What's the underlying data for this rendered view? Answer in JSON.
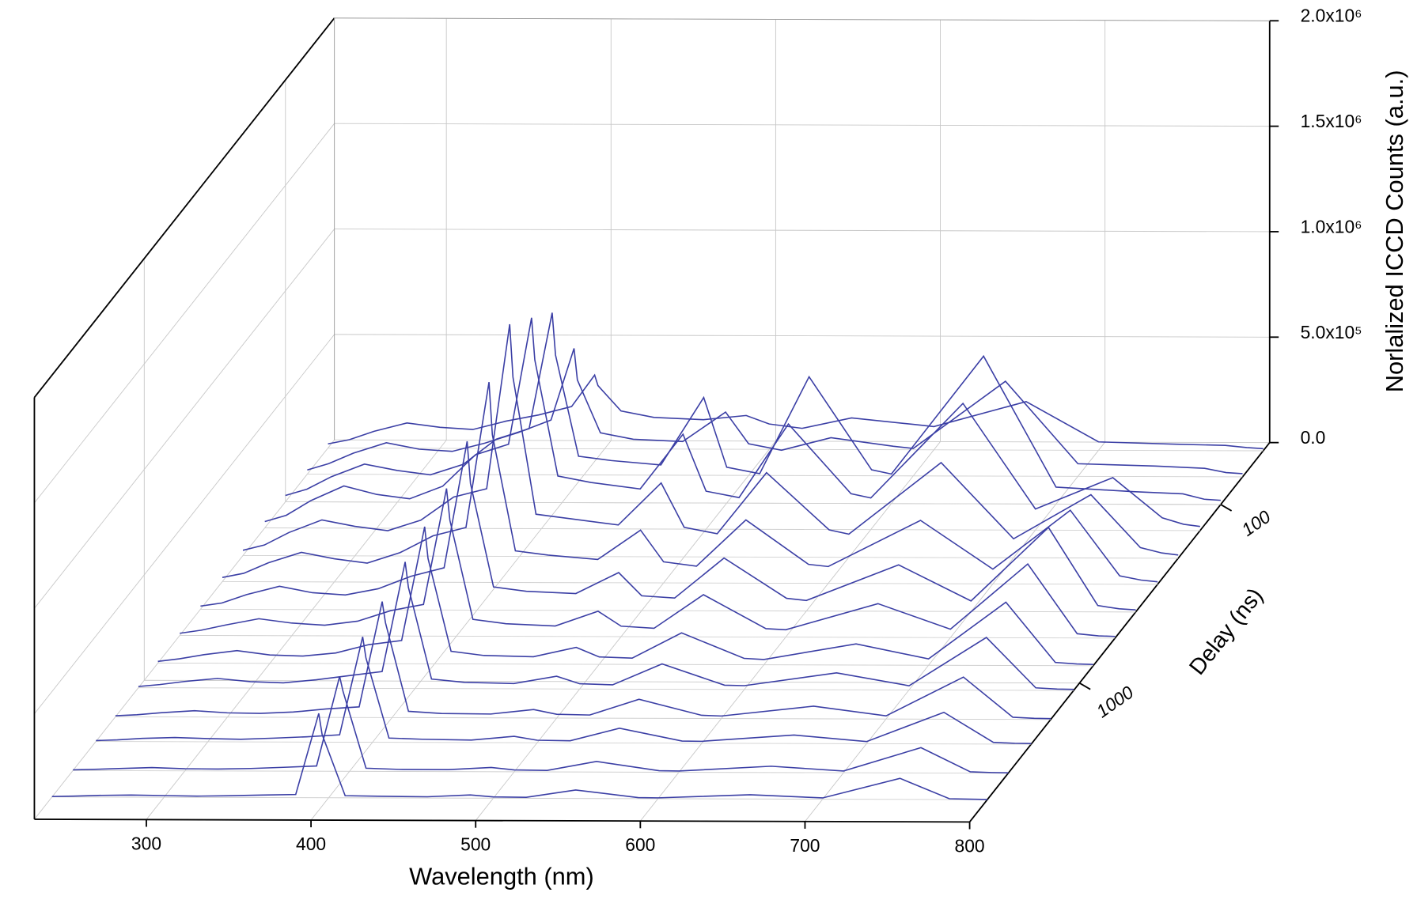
{
  "chart_data": {
    "type": "waterfall",
    "xlabel": "Wavelength (nm)",
    "ylabel": "Norlalized ICCD Counts (a.u.)",
    "zlabel": "Delay (ns)",
    "xlim": [
      232,
      800
    ],
    "xticks": [
      300,
      400,
      500,
      600,
      700,
      800
    ],
    "ylim": [
      0,
      2000000
    ],
    "yticks": [
      {
        "value": 0,
        "label": "0.0"
      },
      {
        "value": 500000,
        "label": "5.0x10⁵"
      },
      {
        "value": 1000000,
        "label": "1.0x10⁶"
      },
      {
        "value": 1500000,
        "label": "1.5x10⁶"
      },
      {
        "value": 2000000,
        "label": "2.0x10⁶"
      }
    ],
    "zlim": [
      45,
      6000
    ],
    "zticks": [
      100,
      1000
    ],
    "zscale": "log",
    "grid": true,
    "color": "#3b3fa5",
    "x": [
      232,
      245,
      260,
      280,
      300,
      320,
      340,
      360,
      380,
      394,
      396,
      410,
      430,
      460,
      486,
      500,
      520,
      550,
      588,
      600,
      656,
      700,
      747,
      777,
      790,
      800
    ],
    "z": [
      50,
      70,
      100,
      140,
      200,
      280,
      400,
      560,
      800,
      1100,
      1600,
      2200,
      3200,
      4500
    ],
    "series": [
      {
        "values": [
          20000,
          40000,
          80000,
          120000,
          100000,
          90000,
          130000,
          160000,
          200000,
          350000,
          300000,
          180000,
          150000,
          140000,
          160000,
          120000,
          100000,
          150000,
          120000,
          110000,
          230000,
          40000,
          30000,
          25000,
          15000,
          10000
        ]
      },
      {
        "values": [
          20000,
          50000,
          100000,
          150000,
          120000,
          110000,
          150000,
          200000,
          260000,
          600000,
          450000,
          200000,
          170000,
          160000,
          300000,
          150000,
          120000,
          180000,
          140000,
          130000,
          450000,
          60000,
          50000,
          40000,
          20000,
          15000
        ]
      },
      {
        "values": [
          30000,
          60000,
          120000,
          180000,
          150000,
          130000,
          180000,
          300000,
          350000,
          900000,
          700000,
          220000,
          200000,
          180000,
          500000,
          170000,
          140000,
          600000,
          160000,
          140000,
          700000,
          80000,
          60000,
          50000,
          25000,
          20000
        ]
      },
      {
        "values": [
          30000,
          60000,
          130000,
          200000,
          160000,
          140000,
          200000,
          350000,
          400000,
          1000000,
          800000,
          250000,
          220000,
          190000,
          450000,
          180000,
          150000,
          500000,
          170000,
          150000,
          600000,
          100000,
          250000,
          60000,
          30000,
          20000
        ]
      },
      {
        "values": [
          25000,
          50000,
          110000,
          170000,
          140000,
          120000,
          170000,
          280000,
          320000,
          1100000,
          850000,
          200000,
          180000,
          150000,
          350000,
          140000,
          110000,
          400000,
          130000,
          110000,
          450000,
          90000,
          300000,
          50000,
          25000,
          15000
        ]
      },
      {
        "values": [
          20000,
          40000,
          90000,
          140000,
          110000,
          90000,
          140000,
          220000,
          260000,
          950000,
          700000,
          150000,
          130000,
          110000,
          250000,
          100000,
          80000,
          300000,
          90000,
          80000,
          300000,
          70000,
          350000,
          40000,
          20000,
          12000
        ]
      },
      {
        "values": [
          15000,
          30000,
          70000,
          110000,
          80000,
          70000,
          100000,
          160000,
          200000,
          800000,
          600000,
          110000,
          90000,
          80000,
          180000,
          70000,
          60000,
          250000,
          60000,
          50000,
          220000,
          50000,
          400000,
          30000,
          15000,
          10000
        ]
      },
      {
        "values": [
          10000,
          25000,
          50000,
          80000,
          60000,
          50000,
          70000,
          120000,
          150000,
          700000,
          550000,
          80000,
          60000,
          50000,
          120000,
          50000,
          40000,
          200000,
          40000,
          35000,
          160000,
          40000,
          350000,
          20000,
          10000,
          8000
        ]
      },
      {
        "values": [
          8000,
          20000,
          40000,
          60000,
          40000,
          35000,
          50000,
          90000,
          110000,
          650000,
          500000,
          60000,
          40000,
          35000,
          80000,
          35000,
          30000,
          150000,
          30000,
          25000,
          100000,
          30000,
          300000,
          15000,
          8000,
          6000
        ]
      },
      {
        "values": [
          6000,
          15000,
          30000,
          45000,
          30000,
          25000,
          40000,
          60000,
          80000,
          600000,
          480000,
          45000,
          30000,
          25000,
          60000,
          25000,
          20000,
          120000,
          20000,
          18000,
          80000,
          20000,
          250000,
          12000,
          6000,
          5000
        ]
      },
      {
        "values": [
          5000,
          10000,
          20000,
          30000,
          20000,
          18000,
          25000,
          40000,
          50000,
          550000,
          450000,
          30000,
          20000,
          18000,
          40000,
          18000,
          15000,
          90000,
          15000,
          12000,
          60000,
          15000,
          200000,
          10000,
          5000,
          4000
        ]
      },
      {
        "values": [
          4000,
          8000,
          15000,
          20000,
          15000,
          12000,
          18000,
          25000,
          35000,
          500000,
          400000,
          20000,
          15000,
          12000,
          30000,
          12000,
          10000,
          70000,
          10000,
          9000,
          40000,
          10000,
          150000,
          8000,
          4000,
          3000
        ]
      },
      {
        "values": [
          3000,
          6000,
          10000,
          15000,
          10000,
          9000,
          12000,
          18000,
          25000,
          450000,
          380000,
          15000,
          10000,
          9000,
          20000,
          9000,
          7000,
          50000,
          7000,
          6000,
          30000,
          8000,
          120000,
          6000,
          3000,
          2000
        ]
      },
      {
        "values": [
          2000,
          4000,
          8000,
          10000,
          8000,
          6000,
          8000,
          12000,
          15000,
          400000,
          300000,
          10000,
          8000,
          6000,
          15000,
          6000,
          5000,
          40000,
          5000,
          4000,
          20000,
          6000,
          100000,
          4000,
          2000,
          1000
        ]
      }
    ]
  }
}
